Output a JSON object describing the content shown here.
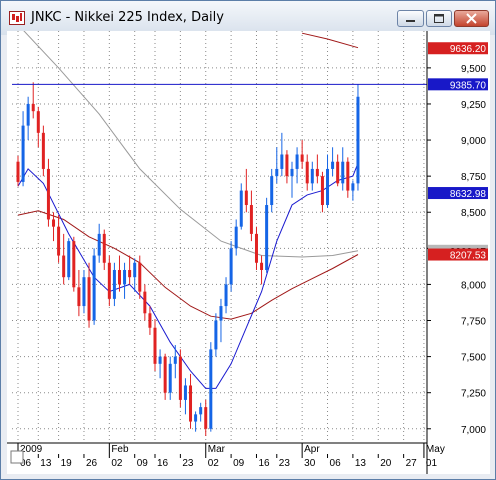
{
  "window": {
    "title": "JNKC - Nikkei 225 Index, Daily"
  },
  "chart_data": {
    "type": "candlestick",
    "symbol": "JNKC",
    "title": "Nikkei 225 Index, Daily",
    "yticks": [
      9500,
      9250,
      9000,
      8750,
      8500,
      8250,
      8000,
      7750,
      7500,
      7250,
      7000
    ],
    "ylim": [
      6950,
      9700
    ],
    "grid": true,
    "xticks": [
      {
        "idx": 0,
        "label": "06"
      },
      {
        "idx": 4,
        "label": "13"
      },
      {
        "idx": 8,
        "label": "19"
      },
      {
        "idx": 13,
        "label": "26"
      },
      {
        "idx": 18,
        "label": "02"
      },
      {
        "idx": 23,
        "label": "09"
      },
      {
        "idx": 27,
        "label": "16"
      },
      {
        "idx": 32,
        "label": "23"
      },
      {
        "idx": 37,
        "label": "02"
      },
      {
        "idx": 42,
        "label": "09"
      },
      {
        "idx": 47,
        "label": "16"
      },
      {
        "idx": 51,
        "label": "23"
      },
      {
        "idx": 56,
        "label": "30"
      },
      {
        "idx": 61,
        "label": "06"
      },
      {
        "idx": 66,
        "label": "13"
      },
      {
        "idx": 71,
        "label": "20"
      },
      {
        "idx": 76,
        "label": "27"
      },
      {
        "idx": 80,
        "label": "01"
      }
    ],
    "month_labels": [
      {
        "idx": 0,
        "label": "2009"
      },
      {
        "idx": 18,
        "label": "Feb"
      },
      {
        "idx": 37,
        "label": "Mar"
      },
      {
        "idx": 56,
        "label": "Apr"
      },
      {
        "idx": 80,
        "label": "May"
      }
    ],
    "price_markers": [
      {
        "label": "9636.20",
        "value": 9636,
        "color": "#d62020",
        "text_color": "#ffffff"
      },
      {
        "label": "9385.70",
        "value": 9386,
        "color": "#1818c8",
        "text_color": "#ffffff"
      },
      {
        "label": "8632.98",
        "value": 8633,
        "color": "#1818c8",
        "text_color": "#ffffff"
      },
      {
        "label": "8233.17",
        "value": 8233,
        "color": "#b8b8b8",
        "text_color": "#000000"
      },
      {
        "label": "8207.53",
        "value": 8207,
        "color": "#d62020",
        "text_color": "#ffffff"
      }
    ],
    "hline": {
      "value": 9386,
      "color": "#1818c8"
    },
    "colors": {
      "up": "#1565e6",
      "down": "#e02222",
      "ma_fast": "#1a1ad0",
      "ma_mid": "#a01818",
      "ma_slow": "#9a9a9a"
    },
    "ohlc": [
      [
        8850,
        8890,
        8680,
        8710
      ],
      [
        8710,
        9200,
        8680,
        9100
      ],
      [
        9100,
        9300,
        9000,
        9250
      ],
      [
        9250,
        9400,
        9150,
        9200
      ],
      [
        9200,
        9230,
        8950,
        9050
      ],
      [
        9050,
        9100,
        8750,
        8800
      ],
      [
        8800,
        8870,
        8400,
        8450
      ],
      [
        8450,
        8500,
        8300,
        8400
      ],
      [
        8400,
        8480,
        8150,
        8200
      ],
      [
        8200,
        8350,
        8000,
        8050
      ],
      [
        8050,
        8320,
        8030,
        8300
      ],
      [
        8300,
        8330,
        7950,
        7980
      ],
      [
        7980,
        8100,
        7780,
        7850
      ],
      [
        7850,
        8100,
        7800,
        8050
      ],
      [
        8050,
        8150,
        7700,
        7750
      ],
      [
        7750,
        8250,
        7720,
        8200
      ],
      [
        8200,
        8420,
        8150,
        8350
      ],
      [
        8350,
        8380,
        8100,
        8150
      ],
      [
        8150,
        8200,
        7850,
        7900
      ],
      [
        7900,
        8150,
        7850,
        8100
      ],
      [
        8100,
        8200,
        7950,
        8000
      ],
      [
        8000,
        8150,
        7900,
        8100
      ],
      [
        8100,
        8200,
        8000,
        8050
      ],
      [
        8050,
        8180,
        7950,
        8150
      ],
      [
        8150,
        8200,
        7900,
        7950
      ],
      [
        7950,
        8000,
        7750,
        7800
      ],
      [
        7800,
        7850,
        7650,
        7700
      ],
      [
        7700,
        7760,
        7400,
        7450
      ],
      [
        7450,
        7550,
        7350,
        7500
      ],
      [
        7500,
        7520,
        7200,
        7250
      ],
      [
        7250,
        7500,
        7200,
        7450
      ],
      [
        7450,
        7580,
        7350,
        7500
      ],
      [
        7500,
        7550,
        7150,
        7200
      ],
      [
        7200,
        7350,
        7100,
        7300
      ],
      [
        7300,
        7380,
        7000,
        7050
      ],
      [
        7050,
        7120,
        6980,
        7100
      ],
      [
        7100,
        7180,
        7050,
        7150
      ],
      [
        7150,
        7200,
        6950,
        7000
      ],
      [
        7000,
        7600,
        6980,
        7550
      ],
      [
        7550,
        7800,
        7500,
        7750
      ],
      [
        7750,
        7900,
        7600,
        7850
      ],
      [
        7850,
        8050,
        7800,
        8000
      ],
      [
        8000,
        8300,
        7950,
        8250
      ],
      [
        8250,
        8450,
        8200,
        8400
      ],
      [
        8400,
        8700,
        8380,
        8650
      ],
      [
        8650,
        8800,
        8500,
        8550
      ],
      [
        8550,
        8650,
        8300,
        8350
      ],
      [
        8350,
        8400,
        8100,
        8150
      ],
      [
        8150,
        8200,
        8000,
        8100
      ],
      [
        8100,
        8600,
        8080,
        8550
      ],
      [
        8550,
        8800,
        8500,
        8750
      ],
      [
        8750,
        8950,
        8700,
        8800
      ],
      [
        8800,
        9050,
        8750,
        8900
      ],
      [
        8900,
        8930,
        8700,
        8750
      ],
      [
        8750,
        8850,
        8600,
        8800
      ],
      [
        8800,
        8950,
        8700,
        8900
      ],
      [
        8900,
        9000,
        8800,
        8850
      ],
      [
        8850,
        8900,
        8650,
        8700
      ],
      [
        8700,
        8850,
        8650,
        8800
      ],
      [
        8800,
        8900,
        8700,
        8750
      ],
      [
        8750,
        8780,
        8500,
        8550
      ],
      [
        8550,
        8900,
        8530,
        8800
      ],
      [
        8800,
        8950,
        8750,
        8850
      ],
      [
        8850,
        8900,
        8680,
        8700
      ],
      [
        8700,
        8950,
        8650,
        8850
      ],
      [
        8850,
        8880,
        8600,
        8650
      ],
      [
        8650,
        8720,
        8580,
        8700
      ],
      [
        8700,
        9386,
        8650,
        9300
      ]
    ],
    "ma_fast": [
      [
        0,
        8680
      ],
      [
        2,
        8800
      ],
      [
        5,
        8700
      ],
      [
        10,
        8350
      ],
      [
        15,
        8050
      ],
      [
        18,
        7950
      ],
      [
        22,
        8000
      ],
      [
        26,
        7850
      ],
      [
        30,
        7600
      ],
      [
        34,
        7400
      ],
      [
        37,
        7280
      ],
      [
        39,
        7280
      ],
      [
        42,
        7450
      ],
      [
        45,
        7700
      ],
      [
        48,
        7950
      ],
      [
        51,
        8300
      ],
      [
        54,
        8550
      ],
      [
        57,
        8620
      ],
      [
        60,
        8650
      ],
      [
        63,
        8720
      ],
      [
        66,
        8750
      ],
      [
        67,
        8840
      ]
    ],
    "ma_mid": [
      [
        0,
        8480
      ],
      [
        4,
        8510
      ],
      [
        9,
        8450
      ],
      [
        14,
        8330
      ],
      [
        19,
        8250
      ],
      [
        24,
        8150
      ],
      [
        29,
        7980
      ],
      [
        34,
        7850
      ],
      [
        38,
        7780
      ],
      [
        42,
        7760
      ],
      [
        46,
        7800
      ],
      [
        50,
        7890
      ],
      [
        54,
        7970
      ],
      [
        58,
        8040
      ],
      [
        62,
        8110
      ],
      [
        67,
        8207
      ]
    ],
    "ma_slow": [
      [
        0,
        9800
      ],
      [
        8,
        9500
      ],
      [
        16,
        9180
      ],
      [
        24,
        8800
      ],
      [
        32,
        8520
      ],
      [
        40,
        8300
      ],
      [
        48,
        8200
      ],
      [
        56,
        8190
      ],
      [
        62,
        8200
      ],
      [
        67,
        8233
      ]
    ],
    "ma_upper": [
      [
        56,
        9740
      ],
      [
        61,
        9700
      ],
      [
        67,
        9640
      ]
    ]
  }
}
